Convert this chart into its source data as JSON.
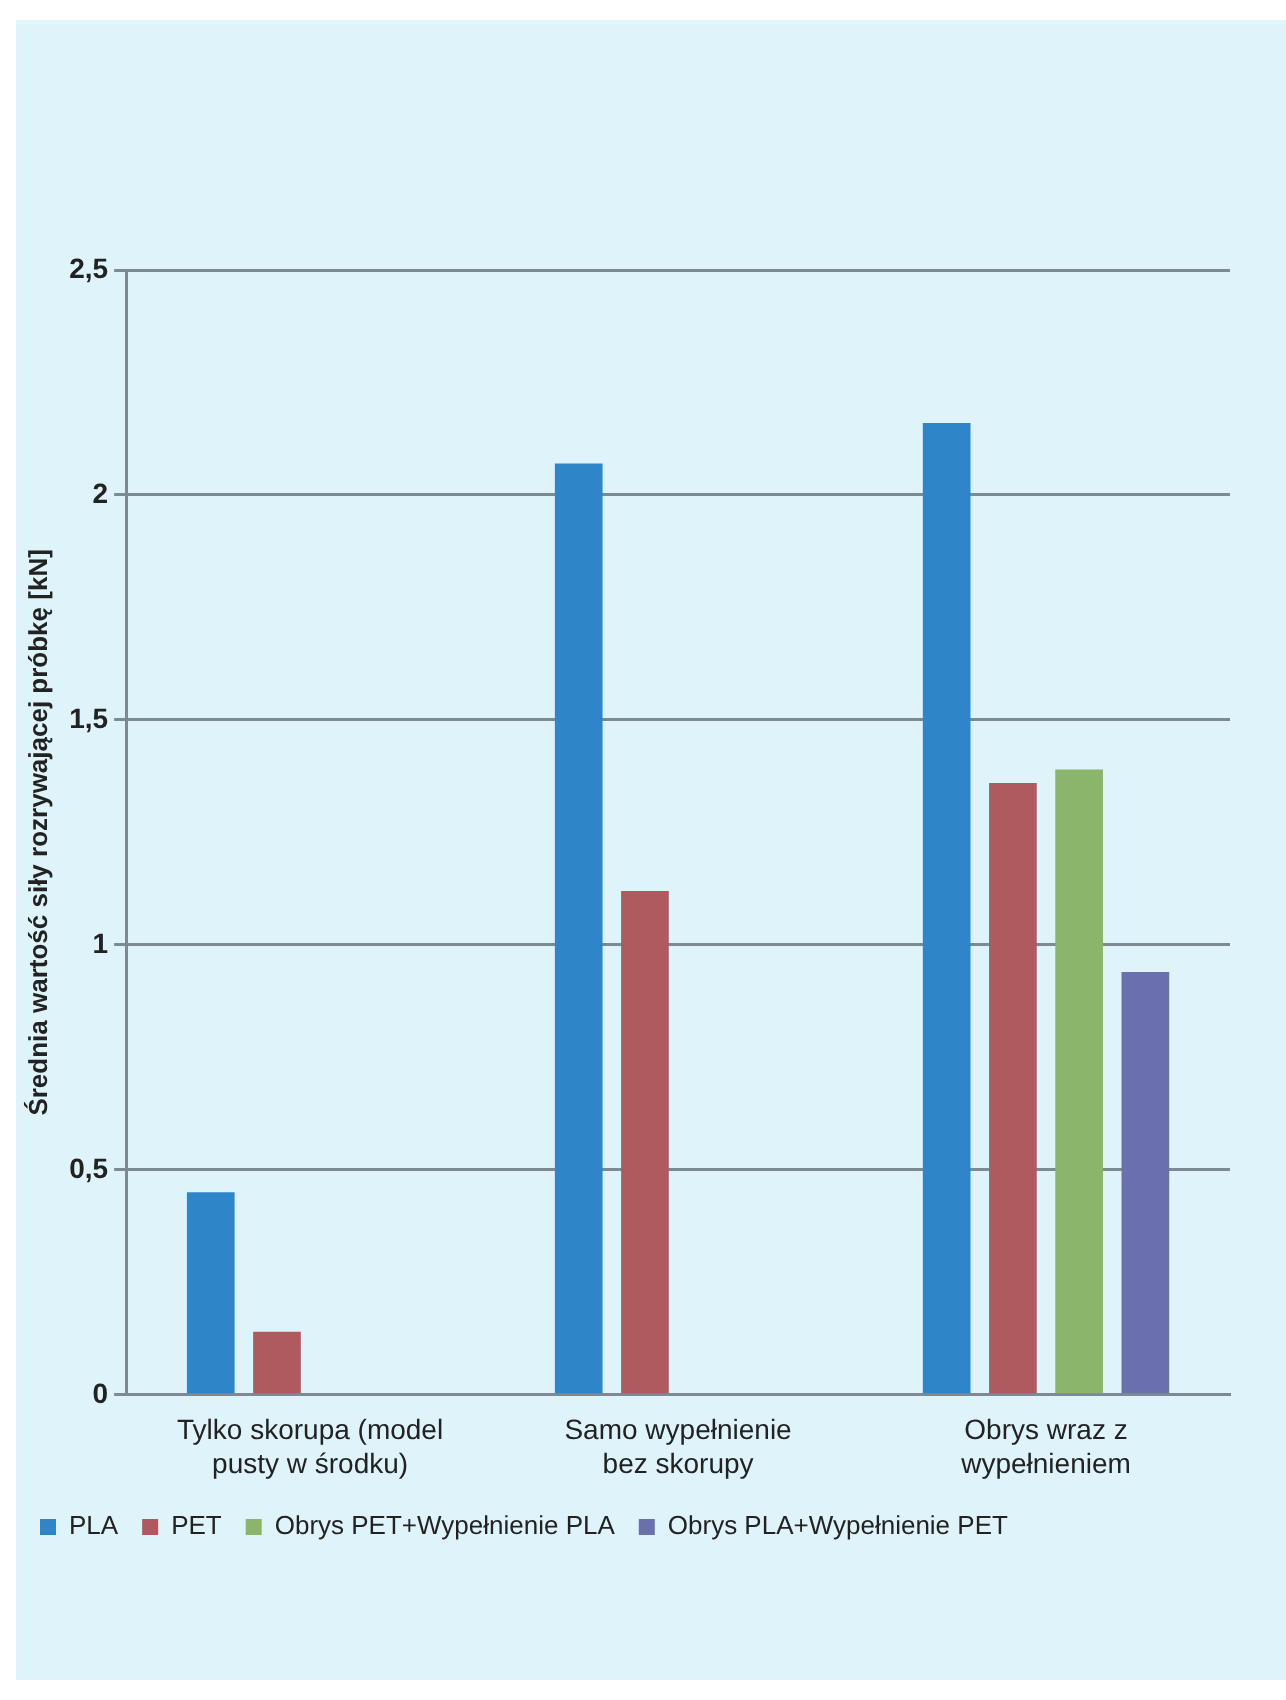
{
  "chart_data": {
    "type": "bar",
    "ylabel": "Średnia wartość siły rozrywającej próbkę [kN]",
    "categories": [
      "Tylko skorupa (model pusty w środku)",
      "Samo wypełnienie bez skorupy",
      "Obrys wraz z wypełnieniem"
    ],
    "series": [
      {
        "name": "PLA",
        "color": "#2e86c8",
        "values": [
          0.45,
          2.07,
          2.16
        ]
      },
      {
        "name": "PET",
        "color": "#ae5a5e",
        "values": [
          0.14,
          1.12,
          1.36
        ]
      },
      {
        "name": "Obrys PET+Wypełnienie PLA",
        "color": "#8ab56a",
        "values": [
          null,
          null,
          1.39
        ]
      },
      {
        "name": "Obrys PLA+Wypełnienie PET",
        "color": "#6a6fb0",
        "values": [
          null,
          null,
          0.94
        ]
      }
    ],
    "ylim": [
      0,
      2.5
    ],
    "yticks": [
      {
        "value": 0,
        "label": "0"
      },
      {
        "value": 0.5,
        "label": "0,5"
      },
      {
        "value": 1,
        "label": "1"
      },
      {
        "value": 1.5,
        "label": "1,5"
      },
      {
        "value": 2,
        "label": "2"
      },
      {
        "value": 2.5,
        "label": "2,5"
      }
    ],
    "grid": "y",
    "legend": "bottom"
  }
}
